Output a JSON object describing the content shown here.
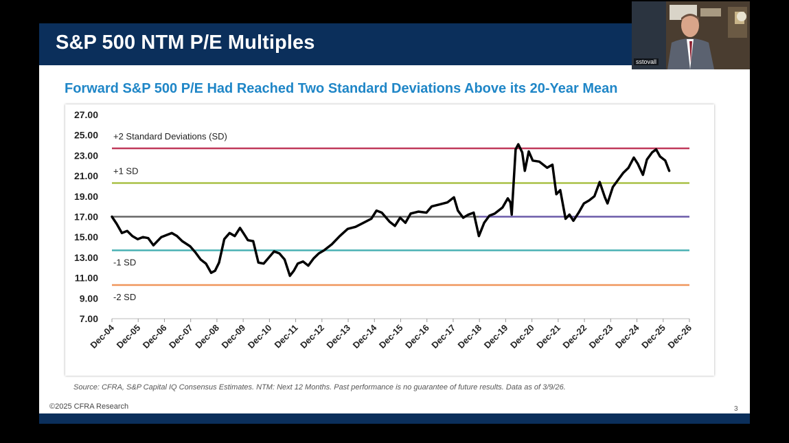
{
  "slide": {
    "title": "S&P 500 NTM P/E Multiples",
    "subtitle": "Forward S&P 500 P/E Had Reached Two Standard Deviations Above its 20-Year Mean",
    "source": "Source: CFRA, S&P Capital IQ Consensus Estimates. NTM: Next 12 Months. Past performance is no guarantee of future results. Data as of 3/9/26.",
    "copyright": "©2025 CFRA Research",
    "page_number": "3",
    "colors": {
      "header": "#0b2f5b",
      "subtitle": "#1f86c7"
    }
  },
  "webcam": {
    "username": "sstovall"
  },
  "chart_data": {
    "type": "line",
    "title": "Forward S&P 500 P/E Had Reached Two Standard Deviations Above its 20-Year Mean",
    "xlabel": "",
    "ylabel": "",
    "ylim": [
      7,
      27
    ],
    "xlim": [
      2004.92,
      2026.92
    ],
    "yticks": [
      "27.00",
      "25.00",
      "23.00",
      "21.00",
      "19.00",
      "17.00",
      "15.00",
      "13.00",
      "11.00",
      "9.00",
      "7.00"
    ],
    "ytick_values": [
      27,
      25,
      23,
      21,
      19,
      17,
      15,
      13,
      11,
      9,
      7
    ],
    "categories": [
      "Dec-04",
      "Dec-05",
      "Dec-06",
      "Dec-07",
      "Dec-08",
      "Dec-09",
      "Dec-10",
      "Dec-11",
      "Dec-12",
      "Dec-13",
      "Dec-14",
      "Dec-15",
      "Dec-16",
      "Dec-17",
      "Dec-18",
      "Dec-19",
      "Dec-20",
      "Dec-21",
      "Dec-22",
      "Dec-23",
      "Dec-24",
      "Dec-25",
      "Dec-26"
    ],
    "reference_lines": [
      {
        "name": "+2 SD",
        "label": "+2 Standard Deviations (SD)",
        "value": 23.7,
        "color": "#c0395a"
      },
      {
        "name": "+1 SD",
        "label": "+1 SD",
        "value": 20.3,
        "color": "#a9c046"
      },
      {
        "name": "Mean",
        "label": "",
        "value": 17.0,
        "color": "#666666"
      },
      {
        "name": "-1 SD",
        "label": "-1 SD",
        "value": 13.7,
        "color": "#48b0b4"
      },
      {
        "name": "-2 SD",
        "label": "-2 SD",
        "value": 10.3,
        "color": "#f0955a"
      }
    ],
    "mean_line_right_color": "#6a5aa8",
    "series": [
      {
        "name": "Forward P/E",
        "color": "#000000",
        "points": [
          [
            2004.92,
            17.0
          ],
          [
            2005.1,
            16.3
          ],
          [
            2005.3,
            15.4
          ],
          [
            2005.5,
            15.6
          ],
          [
            2005.7,
            15.1
          ],
          [
            2005.9,
            14.8
          ],
          [
            2006.1,
            15.0
          ],
          [
            2006.3,
            14.9
          ],
          [
            2006.5,
            14.2
          ],
          [
            2006.8,
            15.0
          ],
          [
            2007.0,
            15.2
          ],
          [
            2007.2,
            15.4
          ],
          [
            2007.4,
            15.1
          ],
          [
            2007.6,
            14.6
          ],
          [
            2007.9,
            14.1
          ],
          [
            2008.1,
            13.5
          ],
          [
            2008.3,
            12.8
          ],
          [
            2008.5,
            12.4
          ],
          [
            2008.7,
            11.5
          ],
          [
            2008.85,
            11.7
          ],
          [
            2009.0,
            12.5
          ],
          [
            2009.2,
            14.8
          ],
          [
            2009.4,
            15.4
          ],
          [
            2009.6,
            15.1
          ],
          [
            2009.8,
            15.9
          ],
          [
            2009.95,
            15.3
          ],
          [
            2010.1,
            14.7
          ],
          [
            2010.3,
            14.6
          ],
          [
            2010.5,
            12.5
          ],
          [
            2010.7,
            12.4
          ],
          [
            2010.9,
            13.0
          ],
          [
            2011.1,
            13.6
          ],
          [
            2011.3,
            13.4
          ],
          [
            2011.5,
            12.8
          ],
          [
            2011.7,
            11.2
          ],
          [
            2011.85,
            11.7
          ],
          [
            2012.0,
            12.4
          ],
          [
            2012.2,
            12.6
          ],
          [
            2012.4,
            12.2
          ],
          [
            2012.6,
            12.9
          ],
          [
            2012.8,
            13.4
          ],
          [
            2013.0,
            13.7
          ],
          [
            2013.3,
            14.3
          ],
          [
            2013.6,
            15.1
          ],
          [
            2013.9,
            15.8
          ],
          [
            2014.2,
            16.0
          ],
          [
            2014.5,
            16.4
          ],
          [
            2014.8,
            16.8
          ],
          [
            2015.0,
            17.6
          ],
          [
            2015.2,
            17.4
          ],
          [
            2015.5,
            16.5
          ],
          [
            2015.7,
            16.1
          ],
          [
            2015.9,
            16.9
          ],
          [
            2016.1,
            16.4
          ],
          [
            2016.3,
            17.3
          ],
          [
            2016.6,
            17.5
          ],
          [
            2016.9,
            17.4
          ],
          [
            2017.1,
            18.0
          ],
          [
            2017.4,
            18.2
          ],
          [
            2017.7,
            18.4
          ],
          [
            2017.95,
            18.9
          ],
          [
            2018.1,
            17.6
          ],
          [
            2018.3,
            16.9
          ],
          [
            2018.5,
            17.2
          ],
          [
            2018.7,
            17.4
          ],
          [
            2018.9,
            15.1
          ],
          [
            2019.1,
            16.4
          ],
          [
            2019.3,
            17.1
          ],
          [
            2019.5,
            17.3
          ],
          [
            2019.8,
            17.9
          ],
          [
            2020.0,
            18.8
          ],
          [
            2020.1,
            18.4
          ],
          [
            2020.15,
            17.2
          ],
          [
            2020.3,
            23.6
          ],
          [
            2020.4,
            24.1
          ],
          [
            2020.55,
            23.3
          ],
          [
            2020.65,
            21.5
          ],
          [
            2020.8,
            23.4
          ],
          [
            2020.95,
            22.5
          ],
          [
            2021.2,
            22.4
          ],
          [
            2021.5,
            21.8
          ],
          [
            2021.7,
            22.1
          ],
          [
            2021.85,
            19.2
          ],
          [
            2022.0,
            19.6
          ],
          [
            2022.2,
            16.8
          ],
          [
            2022.35,
            17.2
          ],
          [
            2022.5,
            16.6
          ],
          [
            2022.7,
            17.4
          ],
          [
            2022.9,
            18.3
          ],
          [
            2023.1,
            18.6
          ],
          [
            2023.3,
            19.0
          ],
          [
            2023.5,
            20.4
          ],
          [
            2023.7,
            18.9
          ],
          [
            2023.8,
            18.3
          ],
          [
            2024.0,
            19.9
          ],
          [
            2024.2,
            20.6
          ],
          [
            2024.4,
            21.3
          ],
          [
            2024.6,
            21.8
          ],
          [
            2024.8,
            22.8
          ],
          [
            2024.95,
            22.2
          ],
          [
            2025.15,
            21.1
          ],
          [
            2025.3,
            22.6
          ],
          [
            2025.5,
            23.3
          ],
          [
            2025.65,
            23.6
          ],
          [
            2025.8,
            22.9
          ],
          [
            2026.0,
            22.5
          ],
          [
            2026.15,
            21.5
          ]
        ]
      }
    ]
  }
}
